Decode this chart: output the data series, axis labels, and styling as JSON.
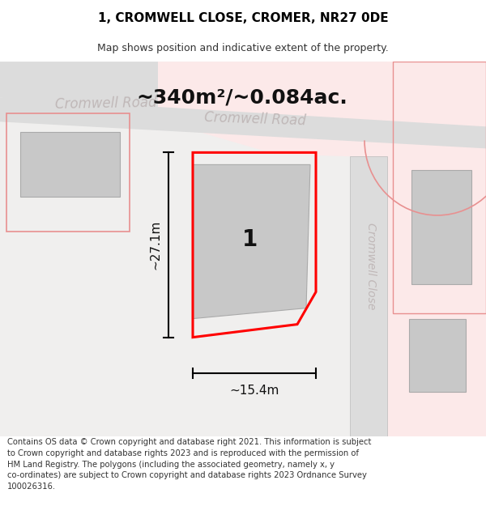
{
  "title": "1, CROMWELL CLOSE, CROMER, NR27 0DE",
  "subtitle": "Map shows position and indicative extent of the property.",
  "footer": "Contains OS data © Crown copyright and database right 2021. This information is subject\nto Crown copyright and database rights 2023 and is reproduced with the permission of\nHM Land Registry. The polygons (including the associated geometry, namely x, y\nco-ordinates) are subject to Crown copyright and database rights 2023 Ordnance Survey\n100026316.",
  "area_text": "~340m²/~0.084ac.",
  "dim_width": "~15.4m",
  "dim_height": "~27.1m",
  "plot_number": "1",
  "road_label_cromwell_road_left": "Cromwell Road",
  "road_label_cromwell_road_center": "Cromwell Road",
  "road_label_cromwell_close": "Cromwell Close",
  "bg_color": "#f0efee",
  "road_grey": "#dcdcdc",
  "road_pink": "#f5d5d5",
  "building_grey": "#c8c8c8",
  "red_plot": "#ff0000",
  "pink_outline": "#e89090",
  "road_text_color": "#c0b8b8",
  "black": "#111111",
  "white": "#ffffff",
  "title_fontsize": 11,
  "subtitle_fontsize": 9,
  "footer_fontsize": 7.2,
  "area_fontsize": 18,
  "dim_fontsize": 11,
  "plot_label_fontsize": 20,
  "road_label_fontsize": 12
}
